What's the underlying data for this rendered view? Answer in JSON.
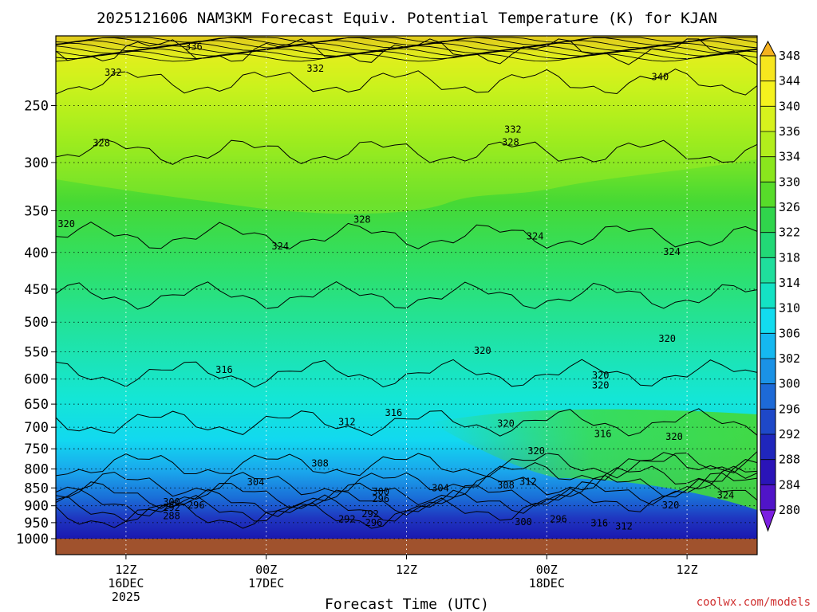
{
  "chart_data": {
    "type": "heatmap",
    "title": "2025121606 NAM3KM Forecast Equiv. Potential Temperature (K) for KJAN",
    "xlabel": "Forecast Time (UTC)",
    "ylabel": "",
    "y_log_pressure": true,
    "ylim": [
      1000,
      200
    ],
    "y_ticks": [
      250,
      300,
      350,
      400,
      450,
      500,
      550,
      600,
      650,
      700,
      750,
      800,
      850,
      900,
      950,
      1000
    ],
    "x_ticks": [
      {
        "hour": 6,
        "lines": [
          "12Z",
          "16DEC",
          "2025"
        ]
      },
      {
        "hour": 18,
        "lines": [
          "00Z",
          "17DEC"
        ]
      },
      {
        "hour": 30,
        "lines": [
          "12Z"
        ]
      },
      {
        "hour": 42,
        "lines": [
          "00Z",
          "18DEC"
        ]
      },
      {
        "hour": 54,
        "lines": [
          "12Z"
        ]
      }
    ],
    "xlim": [
      0,
      60
    ],
    "colorbar": {
      "levels": [
        348,
        344,
        340,
        336,
        334,
        330,
        326,
        322,
        318,
        314,
        310,
        306,
        302,
        300,
        296,
        292,
        288,
        284,
        280
      ],
      "extend": "both"
    },
    "contour_labels": [
      {
        "text": "336",
        "x": 11.8,
        "p": 207
      },
      {
        "text": "332",
        "x": 4.9,
        "p": 225
      },
      {
        "text": "332",
        "x": 22.2,
        "p": 222
      },
      {
        "text": "340",
        "x": 51.7,
        "p": 228
      },
      {
        "text": "332",
        "x": 39.1,
        "p": 270
      },
      {
        "text": "328",
        "x": 3.9,
        "p": 282
      },
      {
        "text": "328",
        "x": 38.9,
        "p": 281
      },
      {
        "text": "320",
        "x": 0.9,
        "p": 365
      },
      {
        "text": "328",
        "x": 26.2,
        "p": 360
      },
      {
        "text": "324",
        "x": 41.0,
        "p": 380
      },
      {
        "text": "324",
        "x": 19.2,
        "p": 392
      },
      {
        "text": "324",
        "x": 52.7,
        "p": 399
      },
      {
        "text": "320",
        "x": 36.5,
        "p": 548
      },
      {
        "text": "320",
        "x": 52.3,
        "p": 527
      },
      {
        "text": "316",
        "x": 14.4,
        "p": 582
      },
      {
        "text": "320",
        "x": 46.6,
        "p": 593
      },
      {
        "text": "320",
        "x": 46.6,
        "p": 612
      },
      {
        "text": "316",
        "x": 28.9,
        "p": 668
      },
      {
        "text": "312",
        "x": 24.9,
        "p": 688
      },
      {
        "text": "320",
        "x": 38.5,
        "p": 692
      },
      {
        "text": "316",
        "x": 46.8,
        "p": 715
      },
      {
        "text": "320",
        "x": 52.9,
        "p": 721
      },
      {
        "text": "320",
        "x": 41.1,
        "p": 755
      },
      {
        "text": "308",
        "x": 22.6,
        "p": 786
      },
      {
        "text": "304",
        "x": 17.1,
        "p": 834
      },
      {
        "text": "304",
        "x": 32.9,
        "p": 851
      },
      {
        "text": "308",
        "x": 38.5,
        "p": 843
      },
      {
        "text": "312",
        "x": 40.4,
        "p": 833
      },
      {
        "text": "300",
        "x": 27.8,
        "p": 860
      },
      {
        "text": "296",
        "x": 27.8,
        "p": 880
      },
      {
        "text": "324",
        "x": 57.3,
        "p": 870
      },
      {
        "text": "300",
        "x": 9.9,
        "p": 889
      },
      {
        "text": "296",
        "x": 12.0,
        "p": 898
      },
      {
        "text": "292",
        "x": 9.9,
        "p": 905
      },
      {
        "text": "320",
        "x": 52.6,
        "p": 898
      },
      {
        "text": "288",
        "x": 9.9,
        "p": 930
      },
      {
        "text": "292",
        "x": 26.9,
        "p": 924
      },
      {
        "text": "292",
        "x": 24.9,
        "p": 940
      },
      {
        "text": "296",
        "x": 27.2,
        "p": 950
      },
      {
        "text": "296",
        "x": 43.0,
        "p": 940
      },
      {
        "text": "300",
        "x": 40.0,
        "p": 948
      },
      {
        "text": "316",
        "x": 46.5,
        "p": 951
      },
      {
        "text": "312",
        "x": 48.6,
        "p": 961
      }
    ]
  },
  "credit": "coolwx.com/models",
  "colors": {
    "brown_ground": "#a0522d",
    "purple": "#7b1fe0",
    "deep_blue": "#1515c8",
    "teal": "#00e0c8",
    "green": "#3fd73f",
    "lime": "#a8ee1c",
    "yellow": "#f7f41e",
    "orange": "#f5a623"
  }
}
